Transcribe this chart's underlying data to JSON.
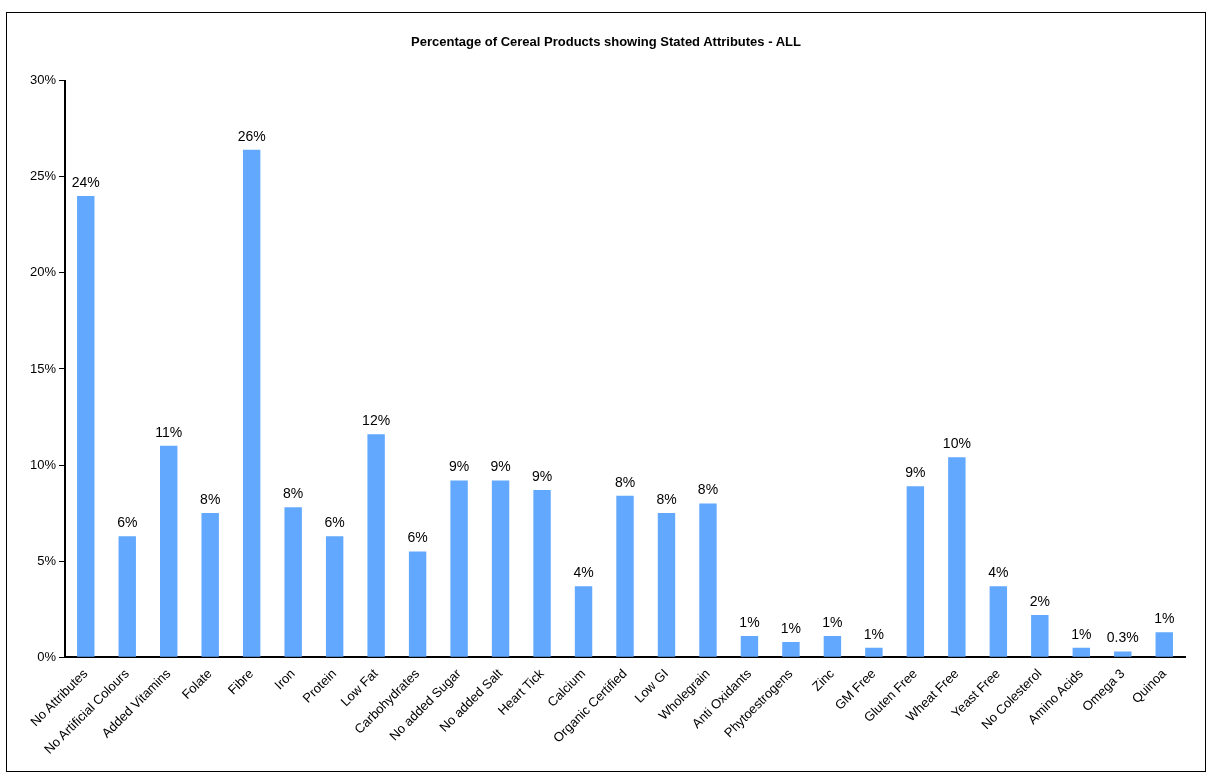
{
  "chart_data": {
    "type": "bar",
    "title": "Percentage of Cereal Products showing Stated Attributes - ALL",
    "categories": [
      "No Attributes",
      "No Artificial Colours",
      "Added Vitamins",
      "Folate",
      "Fibre",
      "Iron",
      "Protein",
      "Low Fat",
      "Carbohydrates",
      "No added Sugar",
      "No added Salt",
      "Heart Tick",
      "Calcium",
      "Organic Certified",
      "Low GI",
      "Wholegrain",
      "Anti Oxidants",
      "Phytoestrogens",
      "Zinc",
      "GM Free",
      "Gluten Free",
      "Wheat Free",
      "Yeast Free",
      "No Colesterol",
      "Amino Acids",
      "Omega 3",
      "Quinoa"
    ],
    "values": [
      24.0,
      6.3,
      11.0,
      7.5,
      26.4,
      7.8,
      6.3,
      11.6,
      5.5,
      9.2,
      9.2,
      8.7,
      3.7,
      8.4,
      7.5,
      8.0,
      1.1,
      0.8,
      1.1,
      0.5,
      8.9,
      10.4,
      3.7,
      2.2,
      0.5,
      0.3,
      1.3
    ],
    "value_labels": [
      "24%",
      "6%",
      "11%",
      "8%",
      "26%",
      "8%",
      "6%",
      "12%",
      "6%",
      "9%",
      "9%",
      "9%",
      "4%",
      "8%",
      "8%",
      "8%",
      "1%",
      "1%",
      "1%",
      "1%",
      "9%",
      "10%",
      "4%",
      "2%",
      "1%",
      "0.3%",
      "1%"
    ],
    "color": "#62a8fe",
    "ylim": [
      0,
      30
    ],
    "yticks": [
      {
        "value": 0,
        "label": "0%"
      },
      {
        "value": 5,
        "label": "5%"
      },
      {
        "value": 10,
        "label": "10%"
      },
      {
        "value": 15,
        "label": "15%"
      },
      {
        "value": 20,
        "label": "20%"
      },
      {
        "value": 25,
        "label": "25%"
      },
      {
        "value": 30,
        "label": "30%"
      }
    ],
    "grid": false,
    "legend": false
  }
}
